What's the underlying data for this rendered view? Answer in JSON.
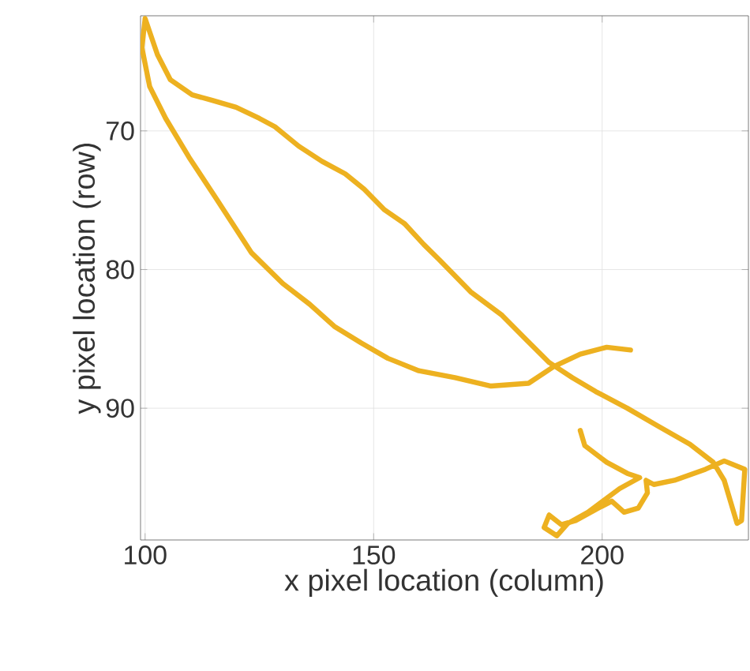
{
  "chart_data": {
    "type": "line",
    "xlabel": "x pixel location (column)",
    "ylabel": "y pixel location (row)",
    "xlim": [
      99,
      232
    ],
    "ylim": [
      99.5,
      61.7
    ],
    "xticks": [
      100,
      150,
      200
    ],
    "yticks": [
      70,
      80,
      90
    ],
    "grid": true,
    "color": "#edb120",
    "x": [
      206.2,
      201.0,
      195.2,
      189.4,
      183.9,
      175.7,
      167.8,
      159.9,
      153.1,
      147.3,
      141.4,
      136.0,
      130.1,
      123.3,
      116.4,
      109.6,
      104.5,
      101.0,
      99.3,
      100.0,
      102.7,
      105.5,
      110.3,
      114.7,
      119.9,
      125.0,
      128.4,
      133.6,
      138.7,
      143.8,
      147.9,
      152.4,
      156.8,
      161.0,
      164.4,
      171.2,
      178.1,
      183.2,
      188.4,
      193.5,
      198.6,
      205.5,
      212.3,
      219.2,
      224.3,
      226.7,
      229.5,
      230.5,
      231.2,
      226.7,
      222.6,
      215.8,
      211.3,
      209.6,
      209.9,
      207.9,
      204.8,
      202.1,
      198.6,
      194.2,
      191.1,
      188.4,
      187.3,
      190.1,
      192.5,
      196.9,
      203.8,
      208.2,
      205.5,
      201.0,
      196.2,
      195.2
    ],
    "values": [
      85.8,
      85.6,
      86.1,
      87.0,
      88.2,
      88.4,
      87.8,
      87.3,
      86.4,
      85.3,
      84.1,
      82.5,
      81.0,
      78.8,
      75.3,
      71.9,
      69.1,
      66.8,
      64.0,
      61.9,
      64.5,
      66.3,
      67.4,
      67.8,
      68.3,
      69.1,
      69.7,
      71.1,
      72.2,
      73.1,
      74.2,
      75.7,
      76.7,
      78.2,
      79.3,
      81.6,
      83.3,
      85.0,
      86.7,
      87.8,
      88.8,
      90.0,
      91.3,
      92.6,
      93.9,
      95.2,
      98.3,
      98.1,
      94.4,
      93.8,
      94.4,
      95.2,
      95.5,
      95.2,
      96.1,
      97.2,
      97.5,
      96.7,
      97.3,
      98.1,
      98.4,
      97.7,
      98.6,
      99.2,
      98.3,
      97.5,
      95.8,
      95.0,
      94.7,
      93.9,
      92.7,
      91.6
    ]
  }
}
